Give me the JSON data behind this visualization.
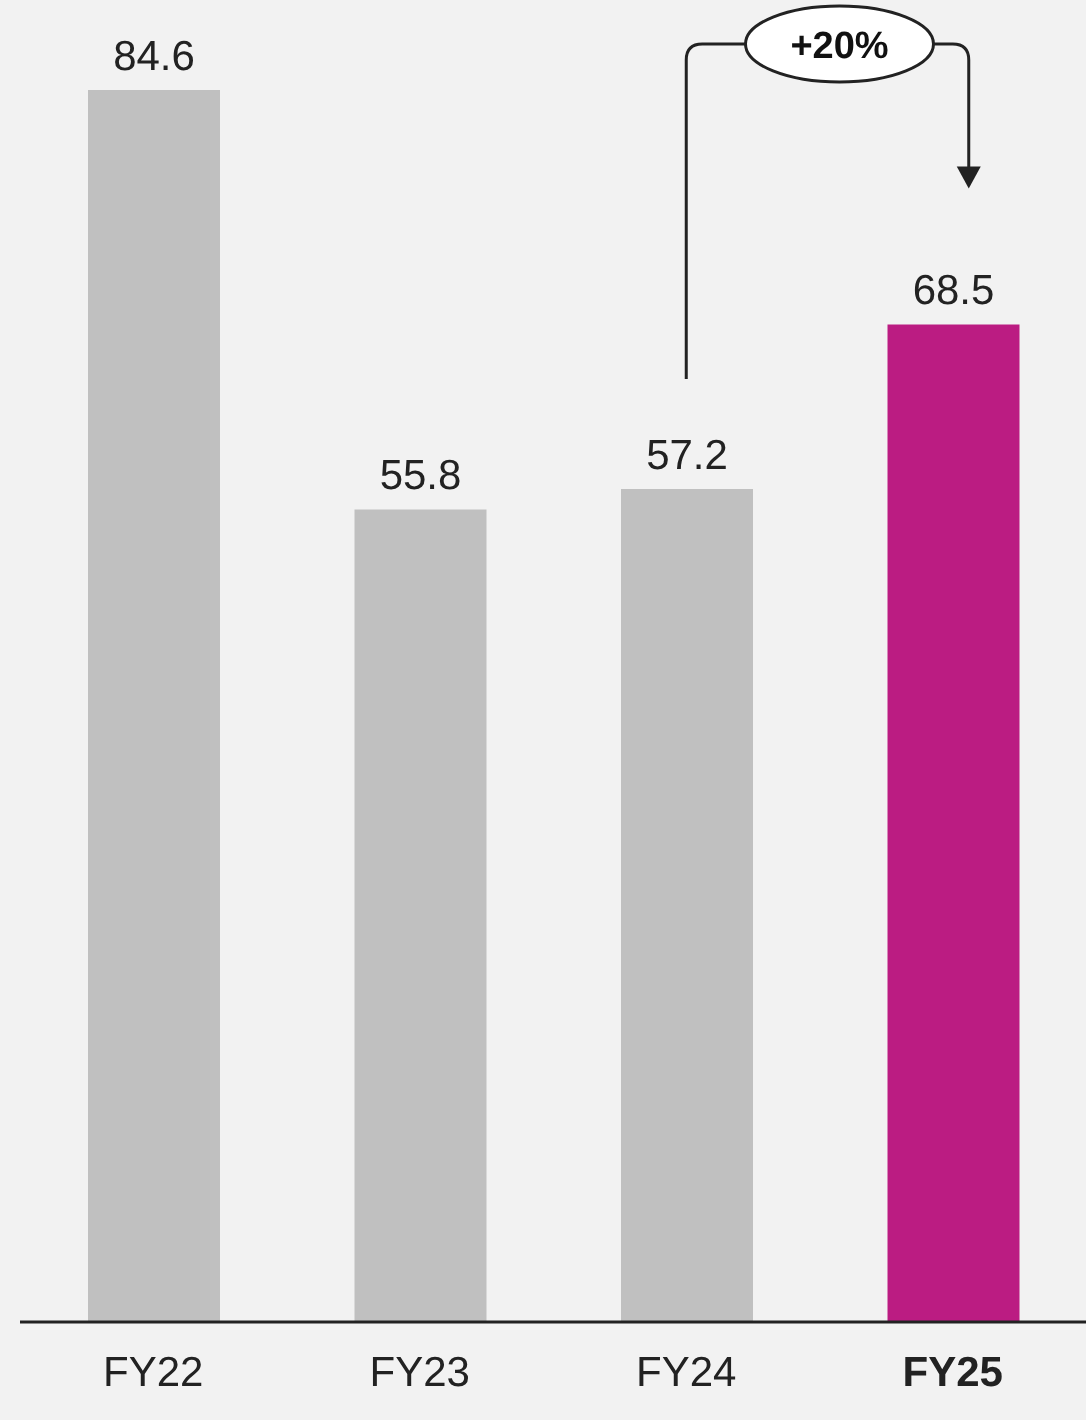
{
  "chart_data": {
    "type": "bar",
    "categories": [
      "FY22",
      "FY23",
      "FY24",
      "FY25"
    ],
    "values": [
      84.6,
      55.8,
      57.2,
      68.5
    ],
    "colors": [
      "#c0c0c0",
      "#c0c0c0",
      "#c0c0c0",
      "#bb1c82"
    ],
    "data_labels": true,
    "annotations": [
      "+20%"
    ]
  }
}
